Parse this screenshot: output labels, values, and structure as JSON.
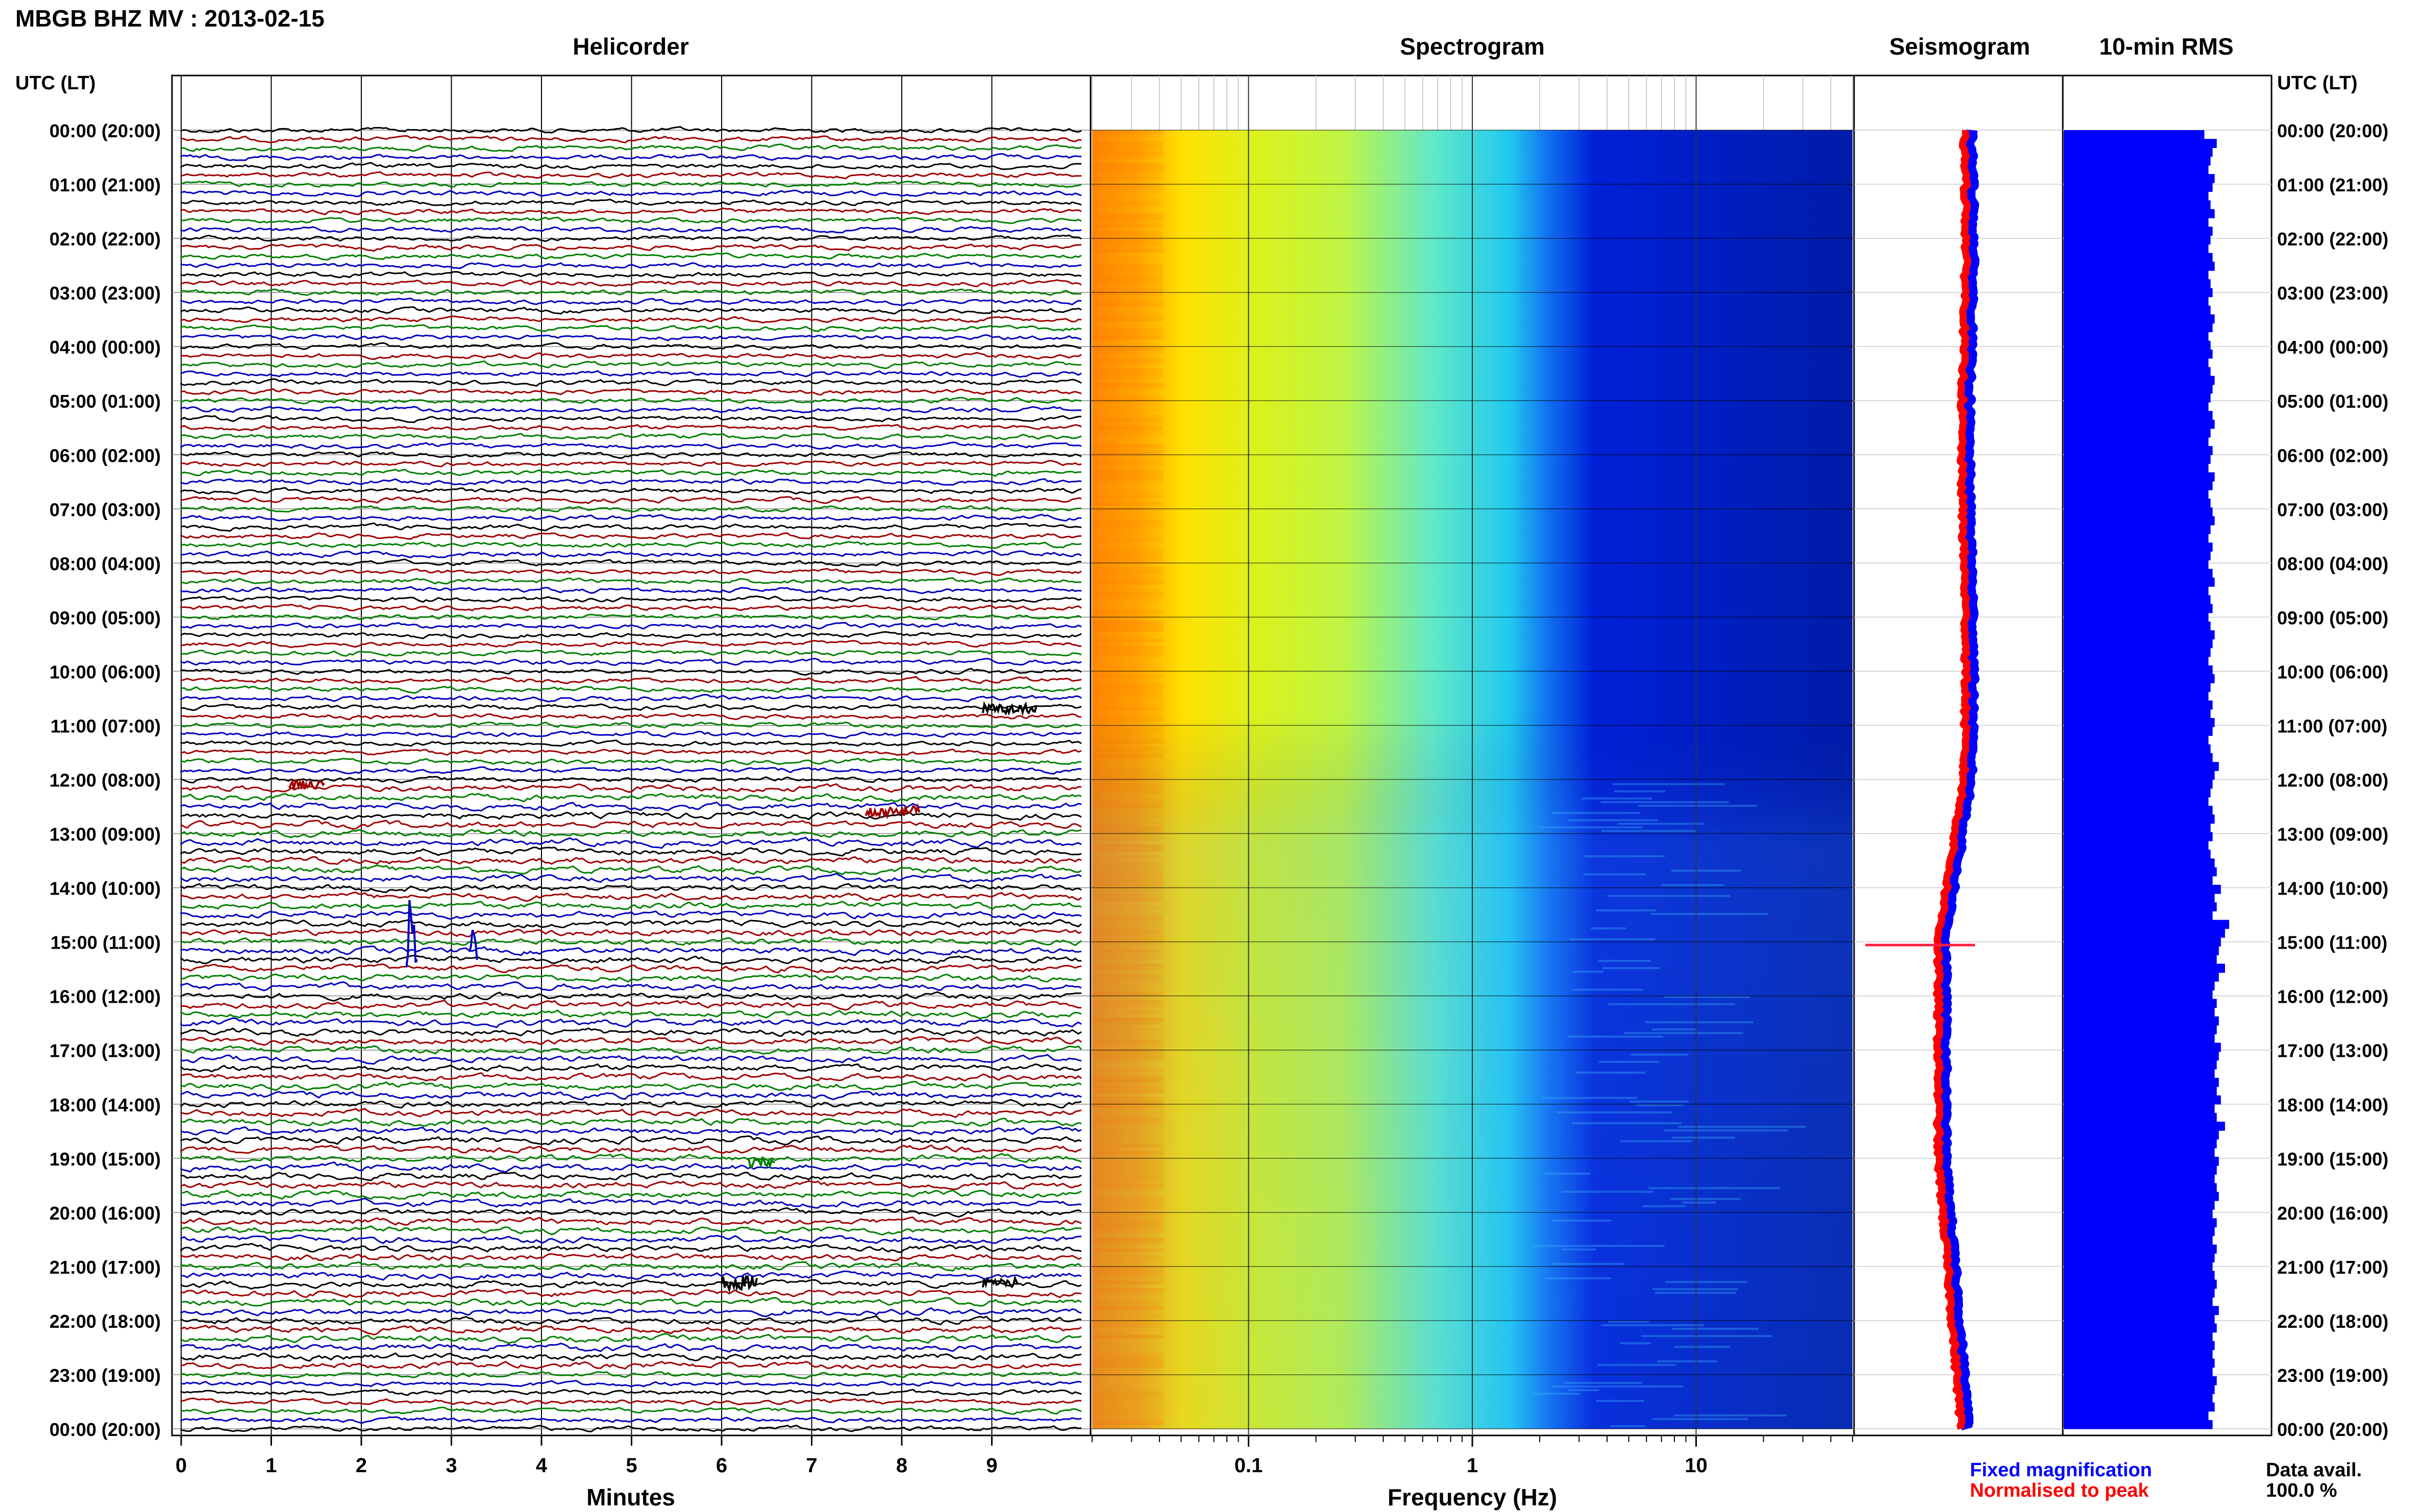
{
  "figure": {
    "title": "MBGB BHZ MV : 2013-02-15",
    "utc_label_left": "UTC (LT)",
    "utc_label_right": "UTC (LT)",
    "legend": {
      "fixed": "Fixed magnification",
      "normalised": "Normalised to peak",
      "fixed_color": "#0000ff",
      "normalised_color": "#ff0000"
    },
    "data_avail": {
      "label": "Data avail.",
      "value": "100.0 %"
    }
  },
  "chart_data": [
    {
      "type": "line",
      "title": "Helicorder",
      "xlabel": "Minutes",
      "ylabel": "",
      "xlim": [
        0,
        10
      ],
      "x_ticks": [
        "0",
        "1",
        "2",
        "3",
        "4",
        "5",
        "6",
        "7",
        "8",
        "9"
      ],
      "rows_per_hour": 6,
      "trace_colors": [
        "#000000",
        "#a00000",
        "#008000",
        "#0000c0"
      ],
      "y_ticks": [
        "00:00 (20:00)",
        "01:00 (21:00)",
        "02:00 (22:00)",
        "03:00 (23:00)",
        "04:00 (00:00)",
        "05:00 (01:00)",
        "06:00 (02:00)",
        "07:00 (03:00)",
        "08:00 (04:00)",
        "09:00 (05:00)",
        "10:00 (06:00)",
        "11:00 (07:00)",
        "12:00 (08:00)",
        "13:00 (09:00)",
        "14:00 (10:00)",
        "15:00 (11:00)",
        "16:00 (12:00)",
        "17:00 (13:00)",
        "18:00 (14:00)",
        "19:00 (15:00)",
        "20:00 (16:00)",
        "21:00 (17:00)",
        "22:00 (18:00)",
        "23:00 (19:00)",
        "00:00 (20:00)"
      ]
    },
    {
      "type": "heatmap",
      "title": "Spectrogram",
      "xlabel": "Frequency (Hz)",
      "x_scale": "log",
      "xlim": [
        0.02,
        50
      ],
      "x_ticks": [
        "0.1",
        "1",
        "10"
      ],
      "y_range_utc_hours": [
        0,
        24
      ]
    },
    {
      "type": "line",
      "title": "Seismogram",
      "series": [
        {
          "name": "Fixed magnification",
          "color": "#0000ff"
        },
        {
          "name": "Normalised to peak",
          "color": "#ff0000"
        }
      ]
    },
    {
      "type": "bar",
      "title": "10-min RMS",
      "color": "#0000ff",
      "rms_relative_width": [
        0.68,
        0.74,
        0.72,
        0.71,
        0.7,
        0.73,
        0.72,
        0.7,
        0.71,
        0.73,
        0.7,
        0.72,
        0.71,
        0.7,
        0.72,
        0.73,
        0.7,
        0.71,
        0.72,
        0.7,
        0.71,
        0.73,
        0.72,
        0.7,
        0.71,
        0.72,
        0.7,
        0.71,
        0.73,
        0.72,
        0.71,
        0.7,
        0.72,
        0.73,
        0.71,
        0.7,
        0.72,
        0.71,
        0.7,
        0.73,
        0.72,
        0.7,
        0.71,
        0.72,
        0.73,
        0.71,
        0.7,
        0.72,
        0.71,
        0.7,
        0.72,
        0.73,
        0.7,
        0.71,
        0.72,
        0.7,
        0.71,
        0.73,
        0.72,
        0.71,
        0.7,
        0.72,
        0.73,
        0.71,
        0.7,
        0.72,
        0.71,
        0.73,
        0.72,
        0.7,
        0.71,
        0.72,
        0.75,
        0.73,
        0.72,
        0.71,
        0.7,
        0.72,
        0.73,
        0.71,
        0.72,
        0.7,
        0.71,
        0.73,
        0.74,
        0.72,
        0.76,
        0.73,
        0.74,
        0.72,
        0.8,
        0.78,
        0.76,
        0.75,
        0.74,
        0.78,
        0.75,
        0.73,
        0.72,
        0.74,
        0.73,
        0.75,
        0.74,
        0.73,
        0.76,
        0.75,
        0.74,
        0.73,
        0.75,
        0.74,
        0.76,
        0.73,
        0.74,
        0.78,
        0.75,
        0.74,
        0.73,
        0.75,
        0.74,
        0.73,
        0.74,
        0.75,
        0.73,
        0.72,
        0.74,
        0.73,
        0.72,
        0.74,
        0.73,
        0.72,
        0.73,
        0.74,
        0.73,
        0.72,
        0.75,
        0.73,
        0.74,
        0.72,
        0.73,
        0.72,
        0.73,
        0.72,
        0.74,
        0.73,
        0.72,
        0.73,
        0.7,
        0.72
      ]
    }
  ]
}
